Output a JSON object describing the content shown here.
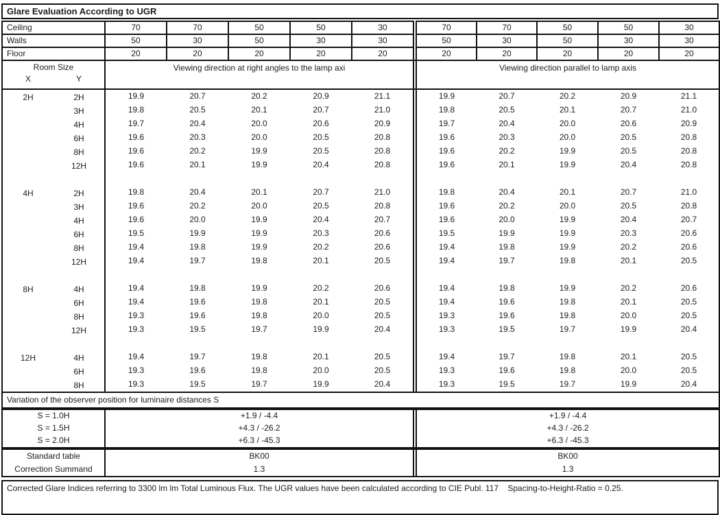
{
  "title": "Glare Evaluation According to UGR",
  "surfaces": {
    "rows": [
      {
        "label": "Ceiling",
        "left": [
          "70",
          "70",
          "50",
          "50",
          "30"
        ],
        "right": [
          "70",
          "70",
          "50",
          "50",
          "30"
        ]
      },
      {
        "label": "Walls",
        "left": [
          "50",
          "30",
          "50",
          "30",
          "30"
        ],
        "right": [
          "50",
          "30",
          "50",
          "30",
          "30"
        ]
      },
      {
        "label": "Floor",
        "left": [
          "20",
          "20",
          "20",
          "20",
          "20"
        ],
        "right": [
          "20",
          "20",
          "20",
          "20",
          "20"
        ]
      }
    ]
  },
  "header": {
    "room_size_label": "Room Size",
    "x_label": "X",
    "y_label": "Y",
    "left_heading": "Viewing direction at right angles to the lamp axi",
    "right_heading": "Viewing direction parallel to lamp axis"
  },
  "ugr_table": {
    "blocks": [
      {
        "x": "2H",
        "rows": [
          {
            "y": "2H",
            "left": [
              "19.9",
              "20.7",
              "20.2",
              "20.9",
              "21.1"
            ],
            "right": [
              "19.9",
              "20.7",
              "20.2",
              "20.9",
              "21.1"
            ]
          },
          {
            "y": "3H",
            "left": [
              "19.8",
              "20.5",
              "20.1",
              "20.7",
              "21.0"
            ],
            "right": [
              "19.8",
              "20.5",
              "20.1",
              "20.7",
              "21.0"
            ]
          },
          {
            "y": "4H",
            "left": [
              "19.7",
              "20.4",
              "20.0",
              "20.6",
              "20.9"
            ],
            "right": [
              "19.7",
              "20.4",
              "20.0",
              "20.6",
              "20.9"
            ]
          },
          {
            "y": "6H",
            "left": [
              "19.6",
              "20.3",
              "20.0",
              "20.5",
              "20.8"
            ],
            "right": [
              "19.6",
              "20.3",
              "20.0",
              "20.5",
              "20.8"
            ]
          },
          {
            "y": "8H",
            "left": [
              "19.6",
              "20.2",
              "19.9",
              "20.5",
              "20.8"
            ],
            "right": [
              "19.6",
              "20.2",
              "19.9",
              "20.5",
              "20.8"
            ]
          },
          {
            "y": "12H",
            "left": [
              "19.6",
              "20.1",
              "19.9",
              "20.4",
              "20.8"
            ],
            "right": [
              "19.6",
              "20.1",
              "19.9",
              "20.4",
              "20.8"
            ]
          }
        ]
      },
      {
        "x": "4H",
        "rows": [
          {
            "y": "2H",
            "left": [
              "19.8",
              "20.4",
              "20.1",
              "20.7",
              "21.0"
            ],
            "right": [
              "19.8",
              "20.4",
              "20.1",
              "20.7",
              "21.0"
            ]
          },
          {
            "y": "3H",
            "left": [
              "19.6",
              "20.2",
              "20.0",
              "20.5",
              "20.8"
            ],
            "right": [
              "19.6",
              "20.2",
              "20.0",
              "20.5",
              "20.8"
            ]
          },
          {
            "y": "4H",
            "left": [
              "19.6",
              "20.0",
              "19.9",
              "20.4",
              "20.7"
            ],
            "right": [
              "19.6",
              "20.0",
              "19.9",
              "20.4",
              "20.7"
            ]
          },
          {
            "y": "6H",
            "left": [
              "19.5",
              "19.9",
              "19.9",
              "20.3",
              "20.6"
            ],
            "right": [
              "19.5",
              "19.9",
              "19.9",
              "20.3",
              "20.6"
            ]
          },
          {
            "y": "8H",
            "left": [
              "19.4",
              "19.8",
              "19.9",
              "20.2",
              "20.6"
            ],
            "right": [
              "19.4",
              "19.8",
              "19.9",
              "20.2",
              "20.6"
            ]
          },
          {
            "y": "12H",
            "left": [
              "19.4",
              "19.7",
              "19.8",
              "20.1",
              "20.5"
            ],
            "right": [
              "19.4",
              "19.7",
              "19.8",
              "20.1",
              "20.5"
            ]
          }
        ]
      },
      {
        "x": "8H",
        "rows": [
          {
            "y": "4H",
            "left": [
              "19.4",
              "19.8",
              "19.9",
              "20.2",
              "20.6"
            ],
            "right": [
              "19.4",
              "19.8",
              "19.9",
              "20.2",
              "20.6"
            ]
          },
          {
            "y": "6H",
            "left": [
              "19.4",
              "19.6",
              "19.8",
              "20.1",
              "20.5"
            ],
            "right": [
              "19.4",
              "19.6",
              "19.8",
              "20.1",
              "20.5"
            ]
          },
          {
            "y": "8H",
            "left": [
              "19.3",
              "19.6",
              "19.8",
              "20.0",
              "20.5"
            ],
            "right": [
              "19.3",
              "19.6",
              "19.8",
              "20.0",
              "20.5"
            ]
          },
          {
            "y": "12H",
            "left": [
              "19.3",
              "19.5",
              "19.7",
              "19.9",
              "20.4"
            ],
            "right": [
              "19.3",
              "19.5",
              "19.7",
              "19.9",
              "20.4"
            ]
          }
        ]
      },
      {
        "x": "12H",
        "rows": [
          {
            "y": "4H",
            "left": [
              "19.4",
              "19.7",
              "19.8",
              "20.1",
              "20.5"
            ],
            "right": [
              "19.4",
              "19.7",
              "19.8",
              "20.1",
              "20.5"
            ]
          },
          {
            "y": "6H",
            "left": [
              "19.3",
              "19.6",
              "19.8",
              "20.0",
              "20.5"
            ],
            "right": [
              "19.3",
              "19.6",
              "19.8",
              "20.0",
              "20.5"
            ]
          },
          {
            "y": "8H",
            "left": [
              "19.3",
              "19.5",
              "19.7",
              "19.9",
              "20.4"
            ],
            "right": [
              "19.3",
              "19.5",
              "19.7",
              "19.9",
              "20.4"
            ]
          }
        ]
      }
    ]
  },
  "variation": {
    "heading": "Variation of the observer position for luminaire distances S",
    "rows": [
      {
        "label": "S = 1.0H",
        "left": "+1.9 / -4.4",
        "right": "+1.9 / -4.4"
      },
      {
        "label": "S = 1.5H",
        "left": "+4.3 / -26.2",
        "right": "+4.3 / -26.2"
      },
      {
        "label": "S = 2.0H",
        "left": "+6.3 / -45.3",
        "right": "+6.3 / -45.3"
      }
    ]
  },
  "summary": {
    "rows": [
      {
        "label": "Standard table",
        "left": "BK00",
        "right": "BK00"
      },
      {
        "label": "Correction Summand",
        "left": "1.3",
        "right": "1.3"
      }
    ]
  },
  "footer": {
    "text": "Corrected Glare Indices referring to 3300 lm lm Total Luminous Flux. The UGR values have been calculated according to CIE Publ. 117    Spacing-to-Height-Ratio = 0.25."
  }
}
